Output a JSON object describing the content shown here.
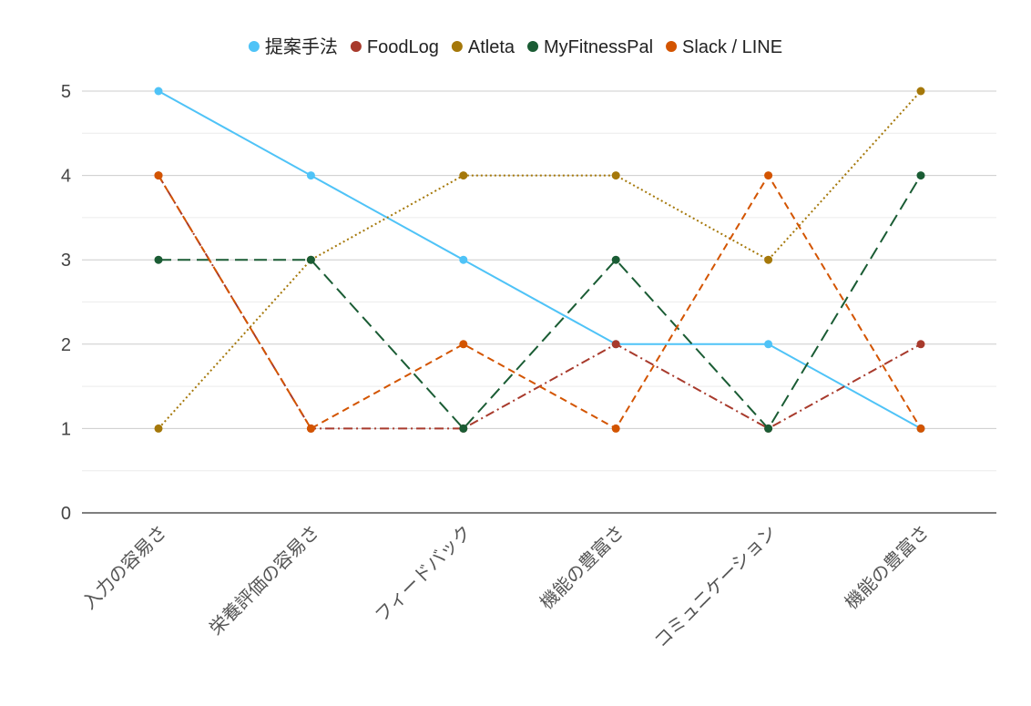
{
  "chart_data": {
    "type": "line",
    "title": "",
    "xlabel": "",
    "ylabel": "",
    "categories": [
      "入力の容易さ",
      "栄養評価の容易さ",
      "フィードバック",
      "機能の豊富さ",
      "コミュニケーション",
      "機能の豊富さ"
    ],
    "ylim": [
      0,
      5
    ],
    "yticks": [
      0,
      1,
      2,
      3,
      4,
      5
    ],
    "grid": true,
    "legend": "top",
    "series": [
      {
        "name": "提案手法",
        "values": [
          5,
          4,
          3,
          2,
          2,
          1
        ],
        "color": "#4fc3f7",
        "dash": "solid"
      },
      {
        "name": "FoodLog",
        "values": [
          4,
          1,
          1,
          2,
          1,
          2
        ],
        "color": "#a83a2c",
        "dash": "dashdot"
      },
      {
        "name": "Atleta",
        "values": [
          1,
          3,
          4,
          4,
          3,
          5
        ],
        "color": "#a5780a",
        "dash": "dotted"
      },
      {
        "name": "MyFitnessPal",
        "values": [
          3,
          3,
          1,
          3,
          1,
          4
        ],
        "color": "#1a5c34",
        "dash": "longdash"
      },
      {
        "name": "Slack / LINE",
        "values": [
          4,
          1,
          2,
          1,
          4,
          1
        ],
        "color": "#d35400",
        "dash": "dashed"
      }
    ]
  }
}
